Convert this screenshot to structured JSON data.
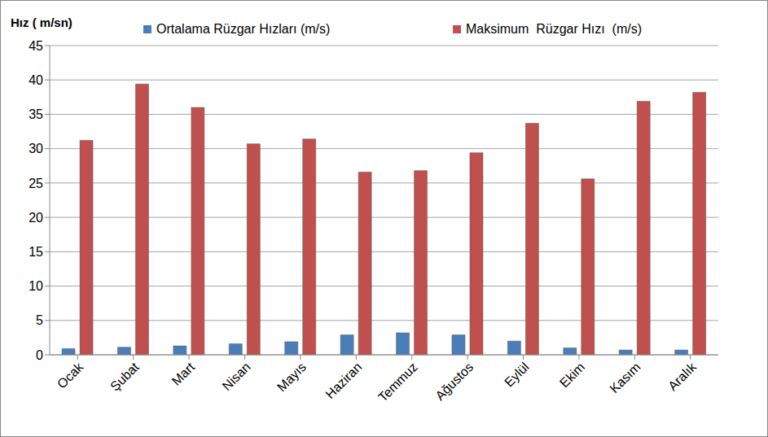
{
  "chart_data": {
    "type": "bar",
    "y_label": "Hız ( m/sn)",
    "categories": [
      "Ocak",
      "Şubat",
      "Mart",
      "Nisan",
      "Mayıs",
      "Haziran",
      "Temmuz",
      "Ağustos",
      "Eylül",
      "Ekim",
      "Kasım",
      "Aralık"
    ],
    "series": [
      {
        "name": "Ortalama Rüzgar Hızları (m/s)",
        "color": "#4a7ebb",
        "values": [
          0.9,
          1.1,
          1.3,
          1.6,
          1.9,
          2.9,
          3.2,
          2.9,
          2.0,
          1.0,
          0.7,
          0.7
        ]
      },
      {
        "name": "Maksimum  Rüzgar Hızı  (m/s)",
        "color": "#c0504d",
        "values": [
          31.2,
          39.4,
          36.0,
          30.7,
          31.4,
          26.6,
          26.8,
          29.4,
          33.7,
          25.6,
          36.9,
          38.2
        ]
      }
    ],
    "ylim": [
      0,
      45
    ],
    "yticks": [
      0,
      5,
      10,
      15,
      20,
      25,
      30,
      35,
      40,
      45
    ],
    "grid": true,
    "legend": "top"
  }
}
